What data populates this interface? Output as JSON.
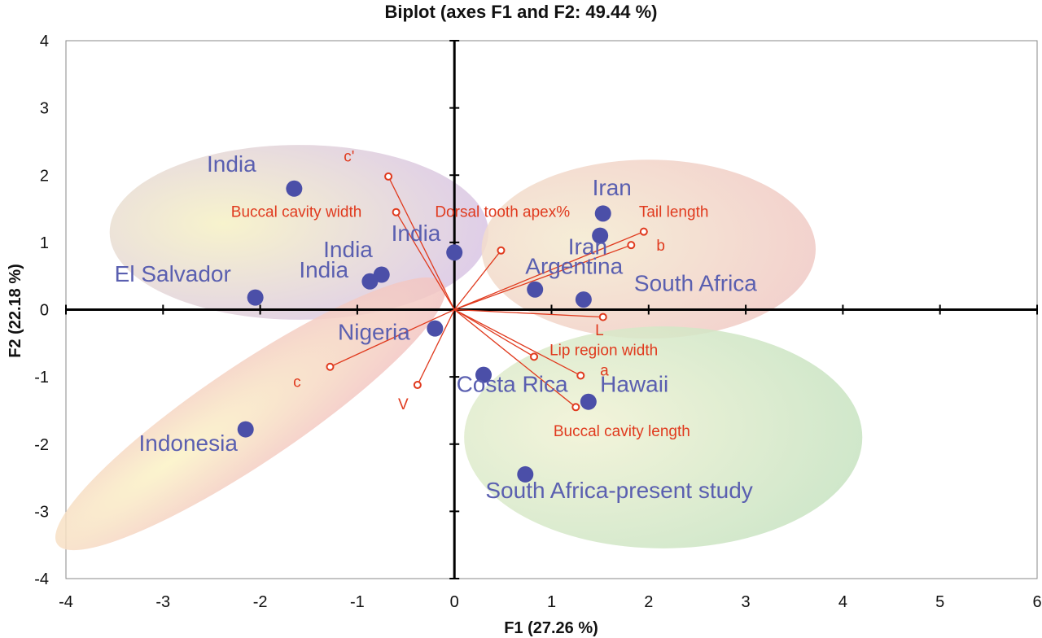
{
  "chart_data": {
    "type": "scatter",
    "title": "Biplot (axes F1 and F2: 49.44 %)",
    "xlabel": "F1 (27.26 %)",
    "ylabel": "F2 (22.18 %)",
    "xlim": [
      -4,
      6
    ],
    "ylim": [
      -4,
      4
    ],
    "xticks": [
      "-4",
      "-3",
      "-2",
      "-1",
      "0",
      "1",
      "2",
      "3",
      "4",
      "5",
      "6"
    ],
    "yticks": [
      "4",
      "3",
      "2",
      "1",
      "0",
      "-1",
      "-2",
      "-3",
      "-4"
    ],
    "colors": {
      "observation": "#4b4fa8",
      "observation_label": "#5a5fb0",
      "variable": "#e03a1e",
      "axis": "#000000"
    },
    "ellipses": [
      {
        "name": "india-el-salvador-group",
        "cx": -1.6,
        "cy": 1.15,
        "rx": 1.95,
        "ry": 1.3,
        "rotation": 0,
        "colors": [
          "#f6f1c4",
          "#d7c2e6"
        ]
      },
      {
        "name": "iran-argentina-group",
        "cx": 2.0,
        "cy": 0.9,
        "rx": 1.72,
        "ry": 1.33,
        "rotation": 0,
        "colors": [
          "#f4ead0",
          "#f0c8c4"
        ]
      },
      {
        "name": "indonesia-nigeria-group",
        "cx": -2.1,
        "cy": -1.55,
        "rx": 2.4,
        "ry": 0.72,
        "rotation": -34,
        "colors": [
          "#fbf3c6",
          "#f2c2c2"
        ]
      },
      {
        "name": "costa-rica-hawaii-group",
        "cx": 2.15,
        "cy": -1.9,
        "rx": 2.05,
        "ry": 1.65,
        "rotation": 0,
        "colors": [
          "#f1f2d4",
          "#c5e2c0"
        ]
      }
    ],
    "observations": [
      {
        "label": "India",
        "x": -1.65,
        "y": 1.8,
        "label_x": -2.55,
        "label_y": 2.05
      },
      {
        "label": "India",
        "x": 0.0,
        "y": 0.85,
        "label_x": -0.65,
        "label_y": 1.02
      },
      {
        "label": "India",
        "x": -0.75,
        "y": 0.52,
        "label_x": -1.35,
        "label_y": 0.78
      },
      {
        "label": "India",
        "x": -0.87,
        "y": 0.42,
        "label_x": -1.6,
        "label_y": 0.48
      },
      {
        "label": "El Salvador",
        "x": -2.05,
        "y": 0.18,
        "label_x": -3.5,
        "label_y": 0.42
      },
      {
        "label": "Iran",
        "x": 1.53,
        "y": 1.43,
        "label_x": 1.42,
        "label_y": 1.7
      },
      {
        "label": "Iran",
        "x": 1.5,
        "y": 1.1,
        "label_x": 1.17,
        "label_y": 0.82
      },
      {
        "label": "Argentina",
        "x": 0.83,
        "y": 0.3,
        "label_x": 0.73,
        "label_y": 0.53
      },
      {
        "label": "South Africa",
        "x": 1.33,
        "y": 0.15,
        "label_x": 1.85,
        "label_y": 0.28
      },
      {
        "label": "Nigeria",
        "x": -0.2,
        "y": -0.28,
        "label_x": -1.2,
        "label_y": -0.45
      },
      {
        "label": "Costa Rica",
        "x": 0.3,
        "y": -0.97,
        "label_x": 0.02,
        "label_y": -1.22
      },
      {
        "label": "Hawaii",
        "x": 1.38,
        "y": -1.37,
        "label_x": 1.5,
        "label_y": -1.22
      },
      {
        "label": "Indonesia",
        "x": -2.15,
        "y": -1.78,
        "label_x": -3.25,
        "label_y": -2.1
      },
      {
        "label": "South Africa-present study",
        "x": 0.73,
        "y": -2.45,
        "label_x": 0.32,
        "label_y": -2.8
      }
    ],
    "variables": [
      {
        "label": "c'",
        "x": -0.68,
        "y": 1.98,
        "label_x": -1.14,
        "label_y": 2.2
      },
      {
        "label": "Buccal cavity width",
        "x": -0.6,
        "y": 1.45,
        "label_x": -2.3,
        "label_y": 1.38
      },
      {
        "label": "Dorsal tooth apex%",
        "x": 0.48,
        "y": 0.88,
        "label_x": -0.2,
        "label_y": 1.38
      },
      {
        "label": "Tail length",
        "x": 1.95,
        "y": 1.16,
        "label_x": 1.9,
        "label_y": 1.38
      },
      {
        "label": "b",
        "x": 1.82,
        "y": 0.96,
        "label_x": 2.08,
        "label_y": 0.88
      },
      {
        "label": "L",
        "x": 1.53,
        "y": -0.11,
        "label_x": 1.45,
        "label_y": -0.38
      },
      {
        "label": "Lip region width",
        "x": 0.82,
        "y": -0.7,
        "label_x": 0.98,
        "label_y": -0.68
      },
      {
        "label": "a",
        "x": 1.3,
        "y": -0.98,
        "label_x": 1.5,
        "label_y": -0.98
      },
      {
        "label": "Buccal cavity length",
        "x": 1.25,
        "y": -1.45,
        "label_x": 1.02,
        "label_y": -1.88
      },
      {
        "label": "c",
        "x": -1.28,
        "y": -0.85,
        "label_x": -1.66,
        "label_y": -1.15
      },
      {
        "label": "V",
        "x": -0.38,
        "y": -1.12,
        "label_x": -0.58,
        "label_y": -1.48
      }
    ]
  }
}
